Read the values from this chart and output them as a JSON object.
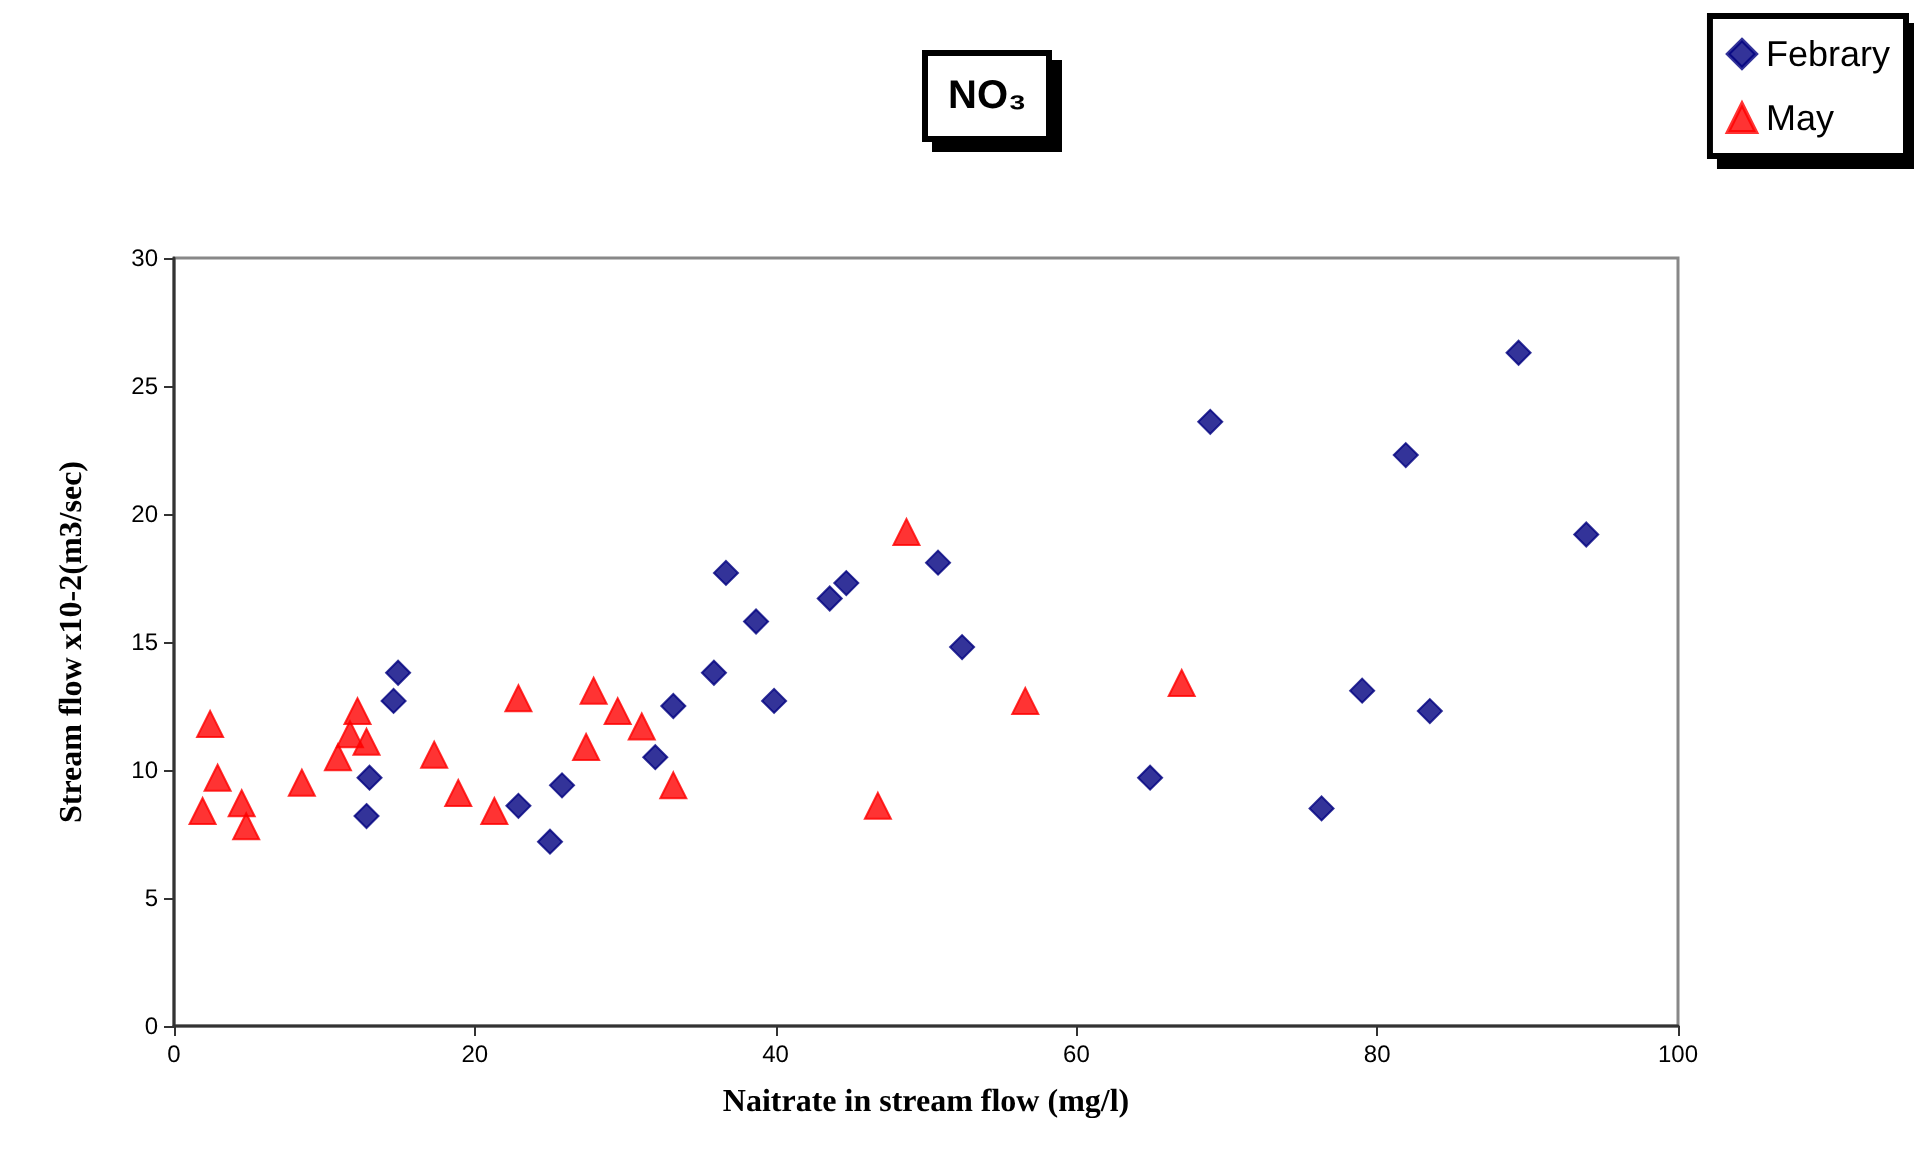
{
  "chart_data": {
    "type": "scatter",
    "title": "NO₃",
    "xlabel": "Naitrate in stream flow (mg/l)",
    "ylabel": "Stream flow x10-2(m3/sec)",
    "xlim": [
      0,
      100
    ],
    "xticks": [
      0,
      20,
      40,
      60,
      80,
      100
    ],
    "ylim": [
      0,
      30
    ],
    "yticks": [
      0,
      5,
      10,
      15,
      20,
      25,
      30
    ],
    "grid": false,
    "legend": "top right",
    "series": [
      {
        "name": "Febrary",
        "color": "#000080",
        "marker": "diamond",
        "x": [
          12.8,
          13.0,
          14.6,
          14.9,
          22.9,
          25.0,
          25.8,
          32.0,
          33.2,
          35.9,
          36.7,
          38.7,
          39.9,
          43.6,
          44.7,
          50.8,
          52.4,
          64.9,
          68.9,
          76.3,
          79.0,
          81.9,
          83.5,
          89.4,
          93.9
        ],
        "values": [
          8.2,
          9.7,
          12.7,
          13.8,
          8.6,
          7.2,
          9.4,
          10.5,
          12.5,
          13.8,
          17.7,
          15.8,
          12.7,
          16.7,
          17.3,
          18.1,
          14.8,
          9.7,
          23.6,
          8.5,
          13.1,
          22.3,
          12.3,
          26.3,
          19.2
        ]
      },
      {
        "name": "May",
        "color": "#ff0000",
        "marker": "triangle",
        "x": [
          1.9,
          2.4,
          2.9,
          4.5,
          4.8,
          8.5,
          10.9,
          11.7,
          12.2,
          12.8,
          17.3,
          18.9,
          21.3,
          22.9,
          27.4,
          27.9,
          29.5,
          31.1,
          33.2,
          46.8,
          48.7,
          56.6,
          67.0
        ],
        "values": [
          8.4,
          11.8,
          9.7,
          8.7,
          7.8,
          9.5,
          10.5,
          11.4,
          12.3,
          11.1,
          10.6,
          9.1,
          8.4,
          12.8,
          10.9,
          13.1,
          12.3,
          11.7,
          9.4,
          8.6,
          19.3,
          12.7,
          13.4
        ]
      }
    ]
  }
}
